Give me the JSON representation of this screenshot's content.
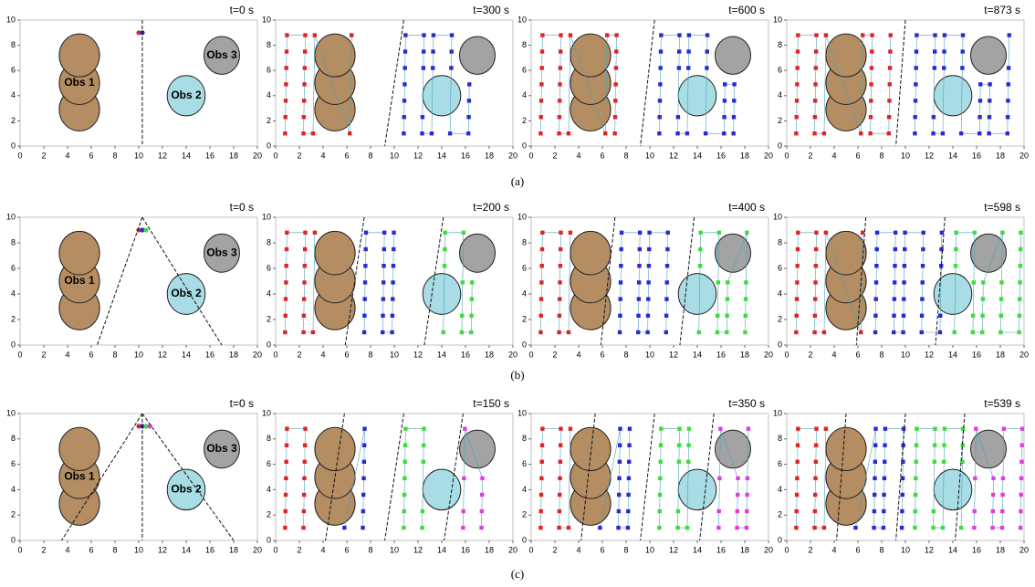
{
  "figure": {
    "xlim": [
      0,
      20
    ],
    "ylim": [
      0,
      10
    ],
    "xticks": [
      0,
      2,
      4,
      6,
      8,
      10,
      12,
      14,
      16,
      18,
      20
    ],
    "yticks": [
      0,
      2,
      4,
      6,
      8,
      10
    ],
    "obstacles": [
      {
        "label": "Obs 1",
        "color": "#b48d62",
        "circles": [
          [
            5,
            2.9
          ],
          [
            5,
            5
          ],
          [
            5,
            7.2
          ]
        ],
        "r": 1.7
      },
      {
        "label": "Obs 2",
        "color": "#a9dde6",
        "circles": [
          [
            14,
            4
          ]
        ],
        "r": 1.6
      },
      {
        "label": "Obs 3",
        "color": "#a3a3a3",
        "circles": [
          [
            17,
            7.2
          ]
        ],
        "r": 1.5
      }
    ],
    "rows": [
      {
        "label": "(a)",
        "colors": [
          "#e02424",
          "#2a2ad4"
        ],
        "panels": [
          "t=0 s",
          "t=300 s",
          "t=600 s",
          "t=873 s"
        ]
      },
      {
        "label": "(b)",
        "colors": [
          "#e02424",
          "#2a2ad4",
          "#3ddc3d"
        ],
        "panels": [
          "t=0 s",
          "t=200 s",
          "t=400 s",
          "t=598 s"
        ]
      },
      {
        "label": "(c)",
        "colors": [
          "#e02424",
          "#2a2ad4",
          "#3ddc3d",
          "#e03ee0"
        ],
        "panels": [
          "t=0 s",
          "t=150 s",
          "t=350 s",
          "t=539 s"
        ]
      }
    ]
  }
}
